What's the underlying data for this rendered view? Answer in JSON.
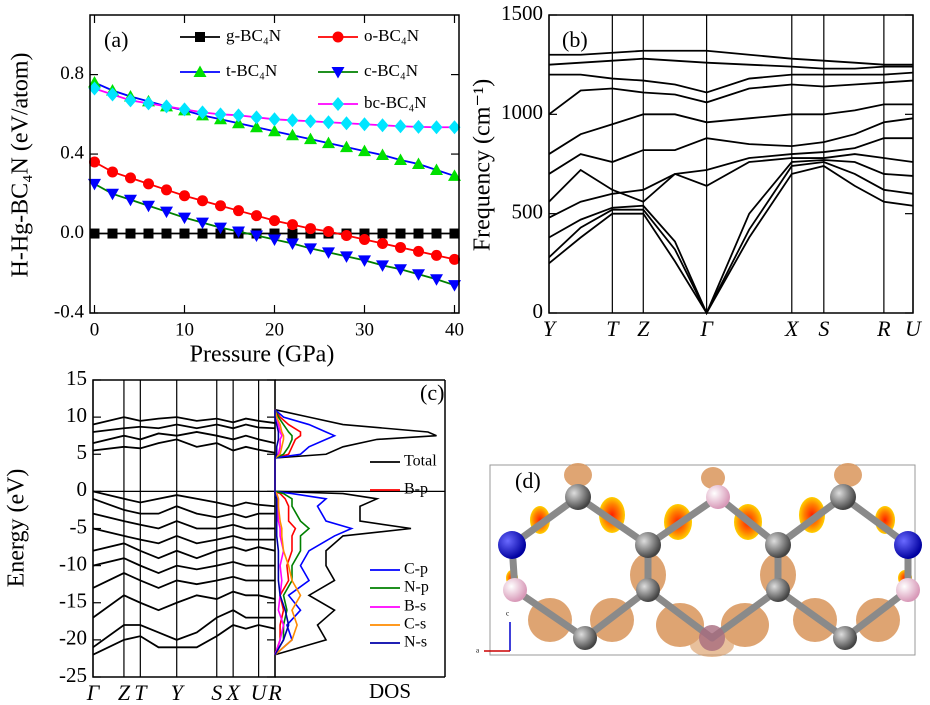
{
  "chart_data": [
    {
      "type": "line",
      "panel_label": "(a)",
      "xlabel": "Pressure (GPa)",
      "ylabel": "H-Hg-BC₄N (eV/atom)",
      "x": [
        0,
        2,
        4,
        6,
        8,
        10,
        12,
        14,
        16,
        18,
        20,
        22,
        24,
        26,
        28,
        30,
        32,
        34,
        36,
        38,
        40
      ],
      "xlim": [
        -0.5,
        40.5
      ],
      "xticks": [
        0,
        10,
        20,
        30,
        40
      ],
      "ylim": [
        -0.4,
        1.1
      ],
      "yticks": [
        -0.4,
        {
          "value": 0,
          "label": "0.0"
        },
        0.4,
        0.8
      ],
      "legend": "upper right",
      "series": [
        {
          "name": "g-BC₄N",
          "color": "#000000",
          "marker": "square",
          "marker_color": "#000000",
          "values": [
            0,
            0,
            0,
            0,
            0,
            0,
            0,
            0,
            0,
            0,
            0,
            0,
            0,
            0,
            0,
            0,
            0,
            0,
            0,
            0,
            0
          ]
        },
        {
          "name": "o-BC₄N",
          "color": "#ff0000",
          "marker": "circle",
          "marker_color": "#ff0000",
          "values": [
            0.36,
            0.31,
            0.28,
            0.25,
            0.22,
            0.19,
            0.165,
            0.14,
            0.115,
            0.09,
            0.065,
            0.045,
            0.025,
            0.01,
            -0.01,
            -0.03,
            -0.05,
            -0.07,
            -0.09,
            -0.11,
            -0.13
          ]
        },
        {
          "name": "t-BC₄N",
          "color": "#0000ff",
          "marker": "triangle-up",
          "marker_color": "#00e000",
          "values": [
            0.76,
            0.72,
            0.69,
            0.665,
            0.64,
            0.62,
            0.595,
            0.575,
            0.555,
            0.535,
            0.515,
            0.495,
            0.475,
            0.455,
            0.435,
            0.415,
            0.395,
            0.37,
            0.35,
            0.32,
            0.29
          ]
        },
        {
          "name": "c-BC₄N",
          "color": "#008000",
          "marker": "triangle-down",
          "marker_color": "#0000ff",
          "values": [
            0.25,
            0.2,
            0.17,
            0.14,
            0.11,
            0.08,
            0.055,
            0.03,
            0.01,
            -0.01,
            -0.03,
            -0.05,
            -0.075,
            -0.095,
            -0.115,
            -0.135,
            -0.16,
            -0.18,
            -0.205,
            -0.23,
            -0.26
          ]
        },
        {
          "name": "bc-BC₄N",
          "color": "#ff00ff",
          "marker": "diamond",
          "marker_color": "#00e5ff",
          "values": [
            0.73,
            0.7,
            0.67,
            0.655,
            0.64,
            0.625,
            0.61,
            0.6,
            0.595,
            0.585,
            0.575,
            0.57,
            0.565,
            0.56,
            0.555,
            0.55,
            0.545,
            0.54,
            0.537,
            0.535,
            0.535
          ]
        }
      ]
    },
    {
      "type": "line",
      "panel_label": "(b)",
      "ylabel": "Frequency (cm⁻¹)",
      "grid": true,
      "color": "#000000",
      "x": [
        0,
        0.087,
        0.174,
        0.259,
        0.346,
        0.433,
        0.55,
        0.667,
        0.755,
        0.84,
        0.92,
        1.0
      ],
      "xlim": [
        0,
        1.0
      ],
      "xticks": [
        {
          "value": 0,
          "label": "Y"
        },
        {
          "value": 0.174,
          "label": "T"
        },
        {
          "value": 0.259,
          "label": "Z"
        },
        {
          "value": 0.433,
          "label": "Γ"
        },
        {
          "value": 0.667,
          "label": "X"
        },
        {
          "value": 0.755,
          "label": "S"
        },
        {
          "value": 0.92,
          "label": "R"
        },
        {
          "value": 1.0,
          "label": "U"
        }
      ],
      "ylim": [
        0,
        1500
      ],
      "yticks": [
        0,
        500,
        1000,
        1500
      ],
      "series": [
        {
          "values": [
            250,
            380,
            500,
            500,
            260,
            0,
            380,
            700,
            740,
            640,
            560,
            540
          ]
        },
        {
          "values": [
            280,
            430,
            520,
            520,
            320,
            0,
            420,
            740,
            760,
            700,
            620,
            600
          ]
        },
        {
          "values": [
            380,
            470,
            530,
            540,
            360,
            0,
            500,
            760,
            770,
            760,
            700,
            690
          ]
        },
        {
          "values": [
            480,
            560,
            600,
            620,
            700,
            640,
            760,
            780,
            780,
            800,
            780,
            760
          ]
        },
        {
          "values": [
            560,
            720,
            620,
            560,
            700,
            720,
            780,
            800,
            810,
            830,
            880,
            880
          ]
        },
        {
          "values": [
            700,
            800,
            760,
            820,
            820,
            880,
            850,
            840,
            860,
            900,
            960,
            980
          ]
        },
        {
          "values": [
            800,
            900,
            950,
            1000,
            1000,
            960,
            980,
            1000,
            1000,
            1020,
            1050,
            1050
          ]
        },
        {
          "values": [
            1000,
            1120,
            1130,
            1110,
            1100,
            1060,
            1130,
            1150,
            1140,
            1150,
            1160,
            1170
          ]
        },
        {
          "values": [
            1200,
            1200,
            1180,
            1170,
            1150,
            1110,
            1180,
            1200,
            1200,
            1200,
            1200,
            1210
          ]
        },
        {
          "values": [
            1250,
            1260,
            1270,
            1280,
            1270,
            1260,
            1250,
            1240,
            1230,
            1230,
            1240,
            1240
          ]
        },
        {
          "values": [
            1300,
            1300,
            1310,
            1320,
            1320,
            1320,
            1300,
            1280,
            1270,
            1260,
            1250,
            1250
          ]
        }
      ]
    },
    {
      "type": "line",
      "panel_label": "(c)",
      "ylabel": "Energy (eV)",
      "grid": true,
      "color": "#000000",
      "reference_line": 0,
      "x": [
        0,
        0.17,
        0.26,
        0.36,
        0.46,
        0.57,
        0.68,
        0.77,
        0.84,
        0.91,
        1.0
      ],
      "xlim": [
        0,
        1.0
      ],
      "xticks": [
        {
          "value": 0,
          "label": "Γ"
        },
        {
          "value": 0.17,
          "label": "Z"
        },
        {
          "value": 0.26,
          "label": "T"
        },
        {
          "value": 0.46,
          "label": "Y"
        },
        {
          "value": 0.68,
          "label": "S"
        },
        {
          "value": 0.77,
          "label": "X"
        },
        {
          "value": 0.91,
          "label": "U"
        },
        {
          "value": 1.0,
          "label": "R"
        }
      ],
      "ylim": [
        -25,
        15
      ],
      "yticks": [
        -25,
        -20,
        -15,
        -10,
        -5,
        0,
        5,
        10,
        15
      ],
      "series": [
        {
          "values": [
            5.5,
            6,
            5.8,
            6.5,
            7,
            6,
            6.5,
            5.5,
            6,
            5.6,
            5.2
          ]
        },
        {
          "values": [
            6.5,
            7.5,
            7,
            7.8,
            7.5,
            8,
            7.5,
            7,
            7.5,
            7,
            6.5
          ]
        },
        {
          "values": [
            8,
            8.5,
            8.7,
            8.5,
            9,
            8.5,
            9,
            8.5,
            9,
            8.6,
            8.5
          ]
        },
        {
          "values": [
            9,
            10,
            9.5,
            9.8,
            10,
            9.5,
            9.8,
            9.3,
            9.8,
            9.5,
            9.2
          ]
        },
        {
          "values": [
            0,
            -1,
            -1.5,
            -1,
            -0.5,
            -1,
            -1.5,
            -2,
            -1.5,
            -1.8,
            -2
          ]
        },
        {
          "values": [
            -1,
            -2.5,
            -3,
            -3,
            -2,
            -3,
            -3.5,
            -3,
            -3.5,
            -3,
            -3
          ]
        },
        {
          "values": [
            -3,
            -4,
            -4.5,
            -5,
            -4,
            -5,
            -5,
            -4.5,
            -5,
            -5,
            -5
          ]
        },
        {
          "values": [
            -5,
            -6,
            -6.5,
            -7,
            -6,
            -7,
            -6.5,
            -6,
            -6.5,
            -6.5,
            -6.5
          ]
        },
        {
          "values": [
            -8,
            -7,
            -8,
            -9,
            -8,
            -9,
            -8,
            -7.5,
            -8,
            -7.5,
            -8
          ]
        },
        {
          "values": [
            -10,
            -9,
            -10,
            -11,
            -10,
            -10.5,
            -10,
            -9.5,
            -10,
            -10,
            -10
          ]
        },
        {
          "values": [
            -13,
            -11,
            -12,
            -13,
            -12,
            -12.5,
            -12,
            -11.5,
            -12,
            -12,
            -12
          ]
        },
        {
          "values": [
            -17,
            -14,
            -15,
            -16,
            -15,
            -14,
            -14.5,
            -13.5,
            -14,
            -14,
            -14.5
          ]
        },
        {
          "values": [
            -21,
            -18,
            -18,
            -19,
            -20,
            -19,
            -17,
            -16,
            -17,
            -17,
            -17
          ]
        },
        {
          "values": [
            -22,
            -20,
            -19.5,
            -21,
            -21,
            -21,
            -19.5,
            -18,
            -18.5,
            -18,
            -18.5
          ]
        }
      ]
    },
    {
      "type": "dos",
      "orientation": "horizontal",
      "xlabel": "DOS",
      "y": [
        -22,
        -20,
        -18,
        -16,
        -14,
        -12,
        -10,
        -8,
        -6,
        -5,
        -4,
        -2,
        -1,
        -0.3,
        0,
        4.5,
        5,
        6,
        7,
        7.5,
        8,
        9,
        10,
        11
      ],
      "ylim": [
        -25,
        15
      ],
      "xlim": [
        0,
        10
      ],
      "series": [
        {
          "name": "Total",
          "color": "#000000",
          "values": [
            0,
            3,
            2.5,
            3.5,
            2,
            3.5,
            3,
            3,
            4,
            8,
            5,
            5,
            6,
            4,
            0,
            0,
            3,
            4,
            6,
            9.5,
            9,
            4,
            2,
            0
          ]
        },
        {
          "name": "B-p",
          "color": "#ff0000",
          "values": [
            0,
            0.3,
            0.3,
            0.5,
            0.3,
            0.8,
            0.7,
            1,
            1,
            1.2,
            0.8,
            0.8,
            0.6,
            0.3,
            0,
            0,
            0.8,
            1,
            1.2,
            1.5,
            1.5,
            0.8,
            0.3,
            0
          ]
        },
        {
          "name": "C-p",
          "color": "#0000ff",
          "values": [
            0,
            1,
            0.7,
            1.5,
            0.8,
            2,
            1.5,
            2,
            3.5,
            4.5,
            3,
            2.5,
            3,
            1,
            0,
            0,
            1.5,
            2,
            3,
            3.5,
            3,
            2,
            0.5,
            0
          ]
        },
        {
          "name": "N-p",
          "color": "#008000",
          "values": [
            0,
            0.5,
            0.5,
            0.7,
            0.5,
            1,
            1,
            1.5,
            1.5,
            2,
            1.5,
            1,
            1,
            0.5,
            0,
            0,
            0.5,
            0.8,
            1,
            1,
            0.8,
            0.5,
            0.2,
            0
          ]
        },
        {
          "name": "B-s",
          "color": "#ff00ff",
          "values": [
            0,
            0.3,
            0.5,
            0.2,
            0.3,
            0.4,
            0.3,
            0.5,
            0.3,
            0.3,
            0.2,
            0.2,
            0.2,
            0.1,
            0,
            0,
            0.2,
            0.3,
            0.3,
            0.4,
            0.3,
            0.2,
            0.1,
            0
          ]
        },
        {
          "name": "C-s",
          "color": "#ff8c00",
          "values": [
            0,
            1,
            1.3,
            1,
            1.5,
            1,
            0.8,
            0.5,
            0.4,
            0.4,
            0.3,
            0.2,
            0.2,
            0.1,
            0,
            0,
            0.3,
            0.4,
            0.5,
            0.5,
            0.4,
            0.3,
            0.1,
            0
          ]
        },
        {
          "name": "N-s",
          "color": "#0000aa",
          "values": [
            0,
            0.5,
            0.8,
            0.6,
            0.3,
            0.2,
            0.2,
            0.2,
            0.1,
            0.1,
            0.1,
            0.1,
            0.1,
            0,
            0,
            0,
            0.1,
            0.1,
            0.2,
            0.2,
            0.2,
            0.1,
            0,
            0
          ]
        }
      ]
    }
  ],
  "structure": {
    "label": "(d)",
    "axes": [
      "c",
      "a"
    ]
  }
}
